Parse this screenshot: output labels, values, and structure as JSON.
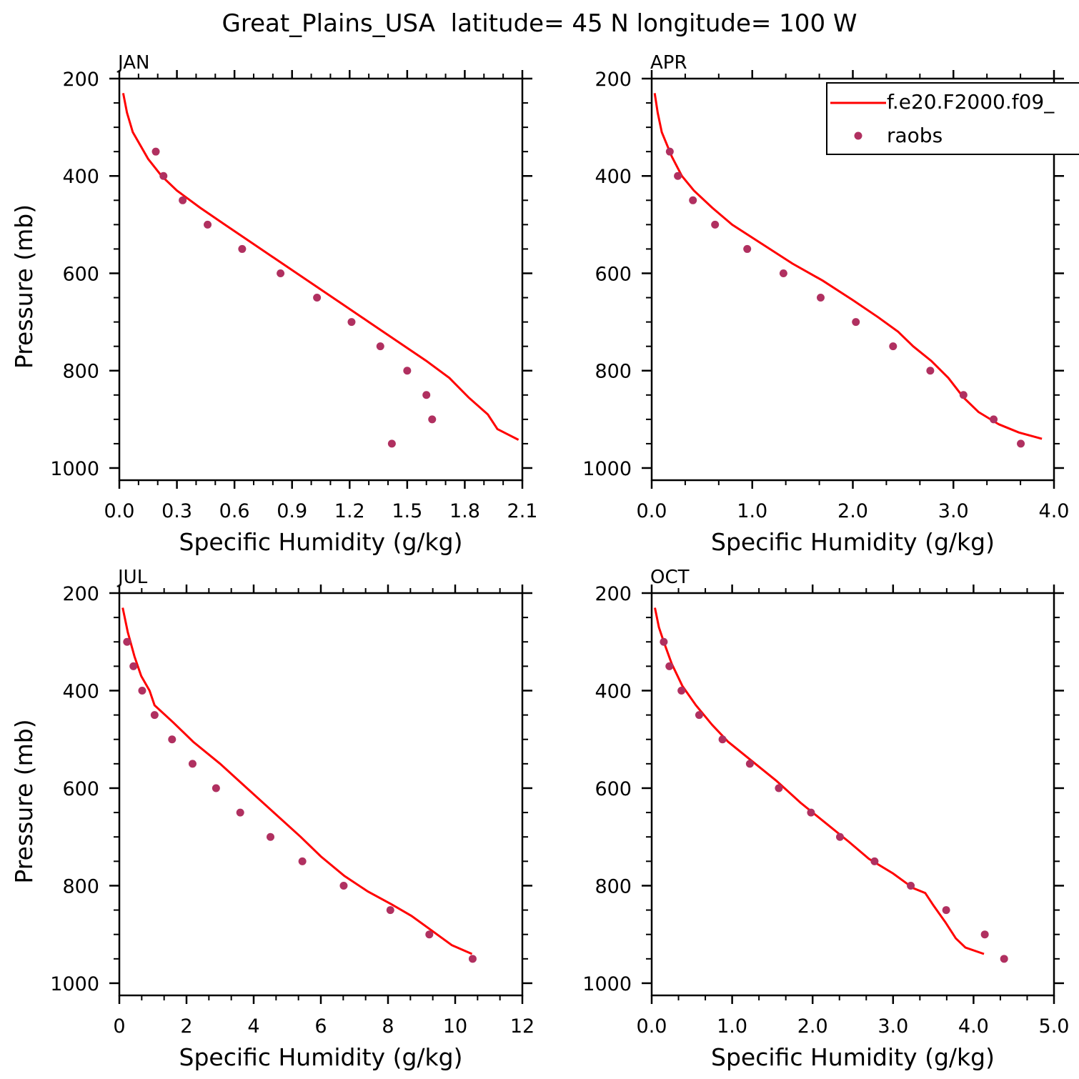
{
  "figure": {
    "title": "Great_Plains_USA  latitude= 45 N longitude= 100 W"
  },
  "legend": {
    "model_label": "f.e20.F2000.f09_",
    "obs_label": "raobs"
  },
  "colors": {
    "model_line": "#ff0000",
    "obs_marker": "#b03060",
    "axes": "#000000"
  },
  "chart_data": [
    {
      "type": "line",
      "panel_label": "JAN",
      "xlabel": "Specific Humidity (g/kg)",
      "ylabel": "Pressure (mb)",
      "xlim": [
        0,
        2.1
      ],
      "ylim": [
        1025,
        200
      ],
      "xticks": [
        "0.0",
        "0.3",
        "0.6",
        "0.9",
        "1.2",
        "1.5",
        "1.8",
        "2.1"
      ],
      "xtick_values": [
        0,
        0.3,
        0.6,
        0.9,
        1.2,
        1.5,
        1.8,
        2.1
      ],
      "yticks": [
        "200",
        "400",
        "600",
        "800",
        "1000"
      ],
      "ytick_values": [
        200,
        400,
        600,
        800,
        1000
      ],
      "series": [
        {
          "name": "f.e20.F2000.f09_",
          "kind": "line",
          "points": [
            [
              0.02,
              230
            ],
            [
              0.04,
              270
            ],
            [
              0.07,
              310
            ],
            [
              0.15,
              365
            ],
            [
              0.22,
              400
            ],
            [
              0.3,
              430
            ],
            [
              0.42,
              465
            ],
            [
              0.55,
              500
            ],
            [
              0.7,
              540
            ],
            [
              0.85,
              580
            ],
            [
              1.0,
              620
            ],
            [
              1.15,
              660
            ],
            [
              1.3,
              700
            ],
            [
              1.45,
              740
            ],
            [
              1.6,
              780
            ],
            [
              1.72,
              815
            ],
            [
              1.82,
              855
            ],
            [
              1.92,
              890
            ],
            [
              1.97,
              920
            ],
            [
              2.02,
              930
            ],
            [
              2.08,
              942
            ]
          ]
        },
        {
          "name": "raobs",
          "kind": "scatter",
          "points": [
            [
              0.19,
              350
            ],
            [
              0.23,
              400
            ],
            [
              0.33,
              450
            ],
            [
              0.46,
              500
            ],
            [
              0.64,
              550
            ],
            [
              0.84,
              600
            ],
            [
              1.03,
              650
            ],
            [
              1.21,
              700
            ],
            [
              1.36,
              750
            ],
            [
              1.5,
              800
            ],
            [
              1.6,
              850
            ],
            [
              1.63,
              900
            ],
            [
              1.42,
              950
            ]
          ]
        }
      ]
    },
    {
      "type": "line",
      "panel_label": "APR",
      "xlabel": "Specific Humidity (g/kg)",
      "ylabel": "",
      "xlim": [
        0,
        4
      ],
      "ylim": [
        1025,
        200
      ],
      "xticks": [
        "0.0",
        "1.0",
        "2.0",
        "3.0",
        "4.0"
      ],
      "xtick_values": [
        0,
        1,
        2,
        3,
        4
      ],
      "yticks": [
        "200",
        "400",
        "600",
        "800",
        "1000"
      ],
      "ytick_values": [
        200,
        400,
        600,
        800,
        1000
      ],
      "series": [
        {
          "name": "f.e20.F2000.f09_",
          "kind": "line",
          "points": [
            [
              0.03,
              230
            ],
            [
              0.06,
              270
            ],
            [
              0.1,
              310
            ],
            [
              0.2,
              360
            ],
            [
              0.3,
              400
            ],
            [
              0.42,
              430
            ],
            [
              0.6,
              465
            ],
            [
              0.8,
              500
            ],
            [
              1.1,
              540
            ],
            [
              1.4,
              580
            ],
            [
              1.7,
              615
            ],
            [
              2.0,
              655
            ],
            [
              2.25,
              690
            ],
            [
              2.45,
              720
            ],
            [
              2.6,
              750
            ],
            [
              2.78,
              780
            ],
            [
              2.95,
              815
            ],
            [
              3.1,
              855
            ],
            [
              3.25,
              885
            ],
            [
              3.45,
              910
            ],
            [
              3.65,
              927
            ],
            [
              3.88,
              940
            ]
          ]
        },
        {
          "name": "raobs",
          "kind": "scatter",
          "points": [
            [
              0.18,
              350
            ],
            [
              0.26,
              400
            ],
            [
              0.41,
              450
            ],
            [
              0.63,
              500
            ],
            [
              0.95,
              550
            ],
            [
              1.31,
              600
            ],
            [
              1.68,
              650
            ],
            [
              2.03,
              700
            ],
            [
              2.4,
              750
            ],
            [
              2.77,
              800
            ],
            [
              3.1,
              850
            ],
            [
              3.4,
              900
            ],
            [
              3.67,
              950
            ]
          ]
        }
      ]
    },
    {
      "type": "line",
      "panel_label": "JUL",
      "xlabel": "Specific Humidity (g/kg)",
      "ylabel": "Pressure (mb)",
      "xlim": [
        0,
        12
      ],
      "ylim": [
        1025,
        200
      ],
      "xticks": [
        "0",
        "2",
        "4",
        "6",
        "8",
        "10",
        "12"
      ],
      "xtick_values": [
        0,
        2,
        4,
        6,
        8,
        10,
        12
      ],
      "yticks": [
        "200",
        "400",
        "600",
        "800",
        "1000"
      ],
      "ytick_values": [
        200,
        400,
        600,
        800,
        1000
      ],
      "series": [
        {
          "name": "f.e20.F2000.f09_",
          "kind": "line",
          "points": [
            [
              0.1,
              230
            ],
            [
              0.25,
              280
            ],
            [
              0.45,
              330
            ],
            [
              0.65,
              370
            ],
            [
              0.9,
              400
            ],
            [
              1.05,
              430
            ],
            [
              1.6,
              465
            ],
            [
              2.2,
              505
            ],
            [
              3.0,
              550
            ],
            [
              3.8,
              600
            ],
            [
              4.6,
              650
            ],
            [
              5.4,
              700
            ],
            [
              6.0,
              740
            ],
            [
              6.7,
              780
            ],
            [
              7.4,
              812
            ],
            [
              8.1,
              838
            ],
            [
              8.7,
              862
            ],
            [
              9.3,
              892
            ],
            [
              9.9,
              922
            ],
            [
              10.5,
              940
            ]
          ]
        },
        {
          "name": "raobs",
          "kind": "scatter",
          "points": [
            [
              0.23,
              300
            ],
            [
              0.42,
              350
            ],
            [
              0.68,
              400
            ],
            [
              1.05,
              450
            ],
            [
              1.57,
              500
            ],
            [
              2.18,
              550
            ],
            [
              2.88,
              600
            ],
            [
              3.6,
              650
            ],
            [
              4.5,
              700
            ],
            [
              5.45,
              750
            ],
            [
              6.68,
              800
            ],
            [
              8.07,
              850
            ],
            [
              9.23,
              900
            ],
            [
              10.52,
              950
            ]
          ]
        }
      ]
    },
    {
      "type": "line",
      "panel_label": "OCT",
      "xlabel": "Specific Humidity (g/kg)",
      "ylabel": "",
      "xlim": [
        0,
        5
      ],
      "ylim": [
        1025,
        200
      ],
      "xticks": [
        "0.0",
        "1.0",
        "2.0",
        "3.0",
        "4.0",
        "5.0"
      ],
      "xtick_values": [
        0,
        1,
        2,
        3,
        4,
        5
      ],
      "yticks": [
        "200",
        "400",
        "600",
        "800",
        "1000"
      ],
      "ytick_values": [
        200,
        400,
        600,
        800,
        1000
      ],
      "series": [
        {
          "name": "f.e20.F2000.f09_",
          "kind": "line",
          "points": [
            [
              0.04,
              230
            ],
            [
              0.09,
              270
            ],
            [
              0.15,
              300
            ],
            [
              0.25,
              345
            ],
            [
              0.38,
              390
            ],
            [
              0.55,
              430
            ],
            [
              0.75,
              470
            ],
            [
              0.95,
              505
            ],
            [
              1.25,
              545
            ],
            [
              1.55,
              585
            ],
            [
              1.85,
              630
            ],
            [
              2.15,
              670
            ],
            [
              2.45,
              710
            ],
            [
              2.7,
              745
            ],
            [
              3.0,
              775
            ],
            [
              3.25,
              805
            ],
            [
              3.4,
              815
            ],
            [
              3.5,
              840
            ],
            [
              3.65,
              875
            ],
            [
              3.78,
              908
            ],
            [
              3.9,
              927
            ],
            [
              4.13,
              940
            ]
          ]
        },
        {
          "name": "raobs",
          "kind": "scatter",
          "points": [
            [
              0.15,
              300
            ],
            [
              0.22,
              350
            ],
            [
              0.37,
              400
            ],
            [
              0.59,
              450
            ],
            [
              0.88,
              500
            ],
            [
              1.22,
              550
            ],
            [
              1.58,
              600
            ],
            [
              1.98,
              650
            ],
            [
              2.34,
              700
            ],
            [
              2.77,
              750
            ],
            [
              3.22,
              800
            ],
            [
              3.66,
              850
            ],
            [
              4.14,
              900
            ],
            [
              4.38,
              950
            ]
          ]
        }
      ]
    }
  ]
}
